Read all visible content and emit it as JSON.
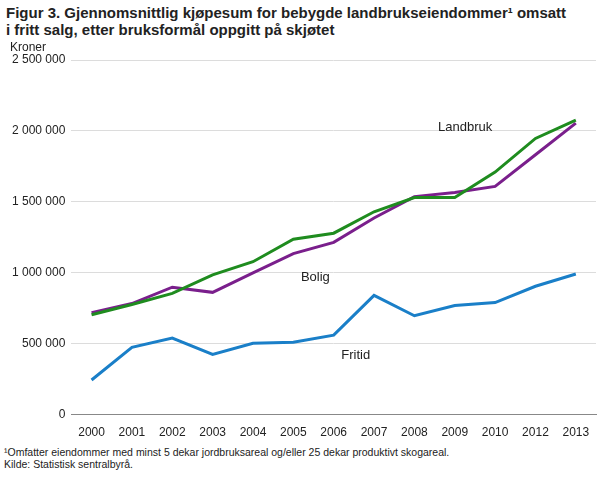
{
  "chart_data": {
    "type": "line",
    "title": [
      "Figur 3. Gjennomsnittlig kjøpesum for bebygde landbrukseiendommer¹ omsatt",
      "i fritt salg, etter bruksformål oppgitt på skjøtet"
    ],
    "y_label": "Kroner",
    "footnotes": [
      "¹Omfatter eiendommer med minst 5 dekar jordbruksareal og/eller 25 dekar produktivt skogareal.",
      "Kilde: Statistisk sentralbyrå."
    ],
    "categories": [
      "2000",
      "2001",
      "2002",
      "2003",
      "2004",
      "2005",
      "2006",
      "2007",
      "2008",
      "2009",
      "2010",
      "2012",
      "2013"
    ],
    "series": [
      {
        "name": "Landbruk",
        "color": "#1f8c1f",
        "values": [
          704000,
          776000,
          855000,
          985000,
          1078000,
          1236000,
          1279000,
          1430000,
          1530000,
          1530000,
          1710000,
          1947000,
          2076000
        ]
      },
      {
        "name": "Bolig",
        "color": "#7a1f8c",
        "values": [
          718000,
          783000,
          898000,
          862000,
          999000,
          1135000,
          1214000,
          1386000,
          1537000,
          1566000,
          1609000,
          1832000,
          2055000
        ]
      },
      {
        "name": "Fritid",
        "color": "#1a7fc8",
        "values": [
          244000,
          474000,
          539000,
          424000,
          503000,
          510000,
          560000,
          841000,
          697000,
          769000,
          790000,
          905000,
          991000
        ]
      }
    ],
    "ylim": [
      0,
      2500000
    ],
    "yticks": [
      {
        "value": 0,
        "label": "0"
      },
      {
        "value": 500000,
        "label": "500 000"
      },
      {
        "value": 1000000,
        "label": "1 000 000"
      },
      {
        "value": 1500000,
        "label": "1 500 000"
      },
      {
        "value": 2000000,
        "label": "2 000 000"
      },
      {
        "value": 2500000,
        "label": "2 500 000"
      }
    ],
    "grid": true,
    "legend": "none"
  }
}
